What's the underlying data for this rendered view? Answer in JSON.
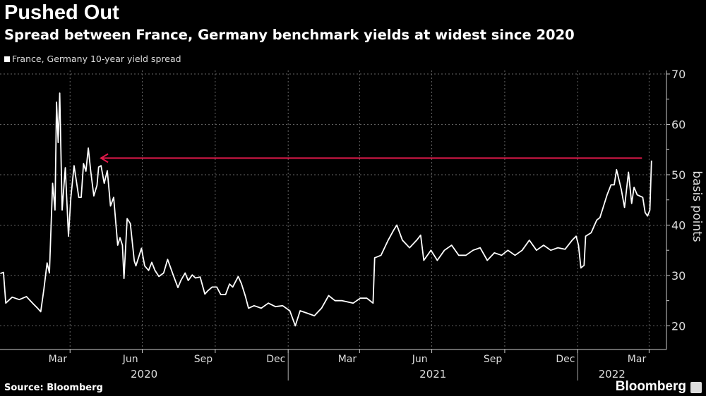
{
  "header": {
    "title": "Pushed Out",
    "subtitle": "Spread between France, Germany benchmark yields at widest since 2020"
  },
  "footer": {
    "source": "Source: Bloomberg",
    "logo": "Bloomberg"
  },
  "colors": {
    "background": "#000000",
    "line": "#ffffff",
    "arrow": "#e0194a",
    "grid": "#666666"
  },
  "chart_data": {
    "type": "line",
    "title": "Pushed Out",
    "subtitle": "Spread between France, Germany benchmark yields at widest since 2020",
    "ylabel": "basis points",
    "xlabel": "",
    "ylim": [
      15.3,
      70.7
    ],
    "xlim": [
      "2020-01-01",
      "2022-04-15"
    ],
    "y_axis_side": "right",
    "yticks": [
      20,
      30,
      40,
      50,
      60,
      70
    ],
    "ytick_labels": [
      "20",
      "30",
      "40",
      "50",
      "60",
      "70"
    ],
    "xtick_labels": [
      {
        "label": "Mar",
        "month": "2020-03"
      },
      {
        "label": "Jun",
        "month": "2020-06"
      },
      {
        "label": "Sep",
        "month": "2020-09"
      },
      {
        "label": "Dec",
        "month": "2020-12"
      },
      {
        "label": "Mar",
        "month": "2021-03"
      },
      {
        "label": "Jun",
        "month": "2021-06"
      },
      {
        "label": "Sep",
        "month": "2021-09"
      },
      {
        "label": "Dec",
        "month": "2021-12"
      },
      {
        "label": "Mar",
        "month": "2022-03"
      }
    ],
    "year_labels": [
      {
        "label": "2020",
        "from": "2020-01-01",
        "to": "2021-01-01"
      },
      {
        "label": "2021",
        "from": "2021-01-01",
        "to": "2022-01-01"
      },
      {
        "label": "2022",
        "from": "2022-01-01",
        "to": "2022-04-15"
      }
    ],
    "grid": true,
    "legend": "top-left",
    "annotation": {
      "type": "arrow",
      "value": 53.3,
      "from": "2022-03-23",
      "to": "2020-05-10"
    },
    "series": [
      {
        "name": "France, Germany 10-year yield spread",
        "points": [
          [
            "2020-01-04",
            30.4
          ],
          [
            "2020-01-08",
            30.6
          ],
          [
            "2020-01-11",
            24.5
          ],
          [
            "2020-01-19",
            25.7
          ],
          [
            "2020-01-28",
            25.2
          ],
          [
            "2020-02-06",
            25.8
          ],
          [
            "2020-02-15",
            24.3
          ],
          [
            "2020-02-20",
            23.5
          ],
          [
            "2020-02-24",
            22.8
          ],
          [
            "2020-02-28",
            27.3
          ],
          [
            "2020-03-03",
            32.5
          ],
          [
            "2020-03-06",
            30.5
          ],
          [
            "2020-03-10",
            48.3
          ],
          [
            "2020-03-13",
            43.0
          ],
          [
            "2020-03-15",
            64.4
          ],
          [
            "2020-03-17",
            56.4
          ],
          [
            "2020-03-19",
            66.2
          ],
          [
            "2020-03-22",
            43.0
          ],
          [
            "2020-03-26",
            51.4
          ],
          [
            "2020-03-30",
            37.8
          ],
          [
            "2020-04-02",
            45.5
          ],
          [
            "2020-04-06",
            51.8
          ],
          [
            "2020-04-09",
            48.7
          ],
          [
            "2020-04-12",
            45.5
          ],
          [
            "2020-04-15",
            45.5
          ],
          [
            "2020-04-18",
            52.2
          ],
          [
            "2020-04-21",
            50.7
          ],
          [
            "2020-04-24",
            55.3
          ],
          [
            "2020-04-27",
            50.7
          ],
          [
            "2020-05-01",
            45.8
          ],
          [
            "2020-05-05",
            47.9
          ],
          [
            "2020-05-07",
            51.5
          ],
          [
            "2020-05-10",
            51.8
          ],
          [
            "2020-05-14",
            48.3
          ],
          [
            "2020-05-18",
            50.8
          ],
          [
            "2020-05-22",
            43.8
          ],
          [
            "2020-05-26",
            45.5
          ],
          [
            "2020-05-31",
            36.0
          ],
          [
            "2020-06-03",
            37.5
          ],
          [
            "2020-06-06",
            36.0
          ],
          [
            "2020-06-08",
            29.4
          ],
          [
            "2020-06-12",
            41.3
          ],
          [
            "2020-06-16",
            40.3
          ],
          [
            "2020-06-21",
            32.9
          ],
          [
            "2020-06-23",
            31.9
          ],
          [
            "2020-06-30",
            35.4
          ],
          [
            "2020-07-04",
            31.9
          ],
          [
            "2020-07-09",
            31.0
          ],
          [
            "2020-07-13",
            32.6
          ],
          [
            "2020-07-17",
            31.0
          ],
          [
            "2020-07-22",
            29.8
          ],
          [
            "2020-07-28",
            30.5
          ],
          [
            "2020-08-02",
            33.2
          ],
          [
            "2020-08-09",
            30.1
          ],
          [
            "2020-08-15",
            27.6
          ],
          [
            "2020-08-19",
            29.1
          ],
          [
            "2020-08-24",
            30.5
          ],
          [
            "2020-08-28",
            29.0
          ],
          [
            "2020-09-02",
            30.1
          ],
          [
            "2020-09-06",
            29.5
          ],
          [
            "2020-09-12",
            29.7
          ],
          [
            "2020-09-18",
            26.3
          ],
          [
            "2020-09-22",
            27.0
          ],
          [
            "2020-09-27",
            27.7
          ],
          [
            "2020-10-03",
            27.7
          ],
          [
            "2020-10-08",
            26.2
          ],
          [
            "2020-10-14",
            26.2
          ],
          [
            "2020-10-19",
            28.3
          ],
          [
            "2020-10-23",
            27.7
          ],
          [
            "2020-10-30",
            29.8
          ],
          [
            "2020-11-03",
            28.4
          ],
          [
            "2020-11-08",
            25.9
          ],
          [
            "2020-11-12",
            23.5
          ],
          [
            "2020-11-19",
            24.0
          ],
          [
            "2020-11-28",
            23.5
          ],
          [
            "2020-12-07",
            24.5
          ],
          [
            "2020-12-16",
            23.8
          ],
          [
            "2020-12-25",
            24.0
          ],
          [
            "2021-01-03",
            23.0
          ],
          [
            "2021-01-10",
            20.0
          ],
          [
            "2021-01-16",
            23.0
          ],
          [
            "2021-01-25",
            22.5
          ],
          [
            "2021-02-03",
            22.0
          ],
          [
            "2021-02-12",
            23.5
          ],
          [
            "2021-02-21",
            26.0
          ],
          [
            "2021-03-01",
            25.0
          ],
          [
            "2021-03-10",
            25.0
          ],
          [
            "2021-03-24",
            24.5
          ],
          [
            "2021-04-02",
            25.5
          ],
          [
            "2021-04-10",
            25.5
          ],
          [
            "2021-04-18",
            24.5
          ],
          [
            "2021-04-20",
            33.5
          ],
          [
            "2021-04-28",
            34.0
          ],
          [
            "2021-05-07",
            37.0
          ],
          [
            "2021-05-14",
            39.0
          ],
          [
            "2021-05-18",
            40.0
          ],
          [
            "2021-05-25",
            37.0
          ],
          [
            "2021-06-03",
            35.5
          ],
          [
            "2021-06-12",
            37.0
          ],
          [
            "2021-06-17",
            38.0
          ],
          [
            "2021-06-21",
            33.0
          ],
          [
            "2021-06-30",
            35.0
          ],
          [
            "2021-07-08",
            33.0
          ],
          [
            "2021-07-17",
            35.0
          ],
          [
            "2021-07-26",
            36.0
          ],
          [
            "2021-08-04",
            34.0
          ],
          [
            "2021-08-13",
            34.0
          ],
          [
            "2021-08-22",
            35.0
          ],
          [
            "2021-08-31",
            35.5
          ],
          [
            "2021-09-09",
            33.0
          ],
          [
            "2021-09-18",
            34.5
          ],
          [
            "2021-09-27",
            34.0
          ],
          [
            "2021-10-05",
            35.0
          ],
          [
            "2021-10-14",
            34.0
          ],
          [
            "2021-10-23",
            35.0
          ],
          [
            "2021-11-01",
            37.0
          ],
          [
            "2021-11-10",
            35.0
          ],
          [
            "2021-11-19",
            36.0
          ],
          [
            "2021-11-28",
            35.0
          ],
          [
            "2021-12-07",
            35.5
          ],
          [
            "2021-12-16",
            35.2
          ],
          [
            "2021-12-25",
            37.0
          ],
          [
            "2021-12-30",
            37.8
          ],
          [
            "2022-01-02",
            36.0
          ],
          [
            "2022-01-05",
            31.5
          ],
          [
            "2022-01-09",
            32.0
          ],
          [
            "2022-01-11",
            37.8
          ],
          [
            "2022-01-18",
            38.5
          ],
          [
            "2022-01-25",
            41.0
          ],
          [
            "2022-01-29",
            41.5
          ],
          [
            "2022-02-03",
            44.0
          ],
          [
            "2022-02-07",
            46.0
          ],
          [
            "2022-02-12",
            48.0
          ],
          [
            "2022-02-16",
            48.0
          ],
          [
            "2022-02-19",
            51.0
          ],
          [
            "2022-02-22",
            49.0
          ],
          [
            "2022-02-25",
            47.0
          ],
          [
            "2022-03-01",
            43.5
          ],
          [
            "2022-03-06",
            50.5
          ],
          [
            "2022-03-10",
            44.3
          ],
          [
            "2022-03-13",
            47.5
          ],
          [
            "2022-03-17",
            46.0
          ],
          [
            "2022-03-24",
            45.5
          ],
          [
            "2022-03-27",
            42.5
          ],
          [
            "2022-03-30",
            41.8
          ],
          [
            "2022-04-02",
            43.0
          ],
          [
            "2022-04-04",
            52.8
          ]
        ]
      }
    ]
  }
}
